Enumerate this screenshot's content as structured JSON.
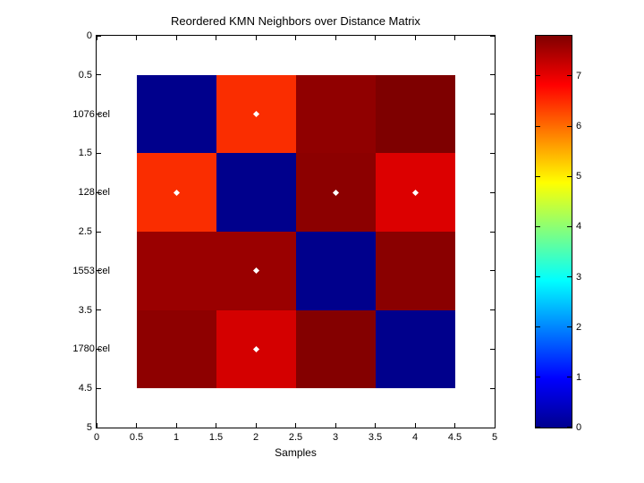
{
  "figure": {
    "background": "#FFFFFF"
  },
  "chart_data": {
    "type": "heatmap",
    "title": "Reordered KMN Neighbors over Distance Matrix",
    "xlabel": "Samples",
    "ylabel": "",
    "x_range": [
      0,
      5
    ],
    "y_range": [
      0,
      5
    ],
    "y_axis_direction": "reversed",
    "grid": false,
    "x_ticks": [
      {
        "v": 0,
        "label": "0"
      },
      {
        "v": 0.5,
        "label": "0.5"
      },
      {
        "v": 1,
        "label": "1"
      },
      {
        "v": 1.5,
        "label": "1.5"
      },
      {
        "v": 2,
        "label": "2"
      },
      {
        "v": 2.5,
        "label": "2.5"
      },
      {
        "v": 3,
        "label": "3"
      },
      {
        "v": 3.5,
        "label": "3.5"
      },
      {
        "v": 4,
        "label": "4"
      },
      {
        "v": 4.5,
        "label": "4.5"
      },
      {
        "v": 5,
        "label": "5"
      }
    ],
    "y_ticks": [
      {
        "v": 0,
        "label": "0",
        "file": false
      },
      {
        "v": 0.5,
        "label": "0.5",
        "file": false
      },
      {
        "v": 1,
        "label": "1076.cel",
        "file": true
      },
      {
        "v": 1.5,
        "label": "1.5",
        "file": false
      },
      {
        "v": 2,
        "label": "128.cel",
        "file": true
      },
      {
        "v": 2.5,
        "label": "2.5",
        "file": false
      },
      {
        "v": 3,
        "label": "1553.cel",
        "file": true
      },
      {
        "v": 3.5,
        "label": "3.5",
        "file": false
      },
      {
        "v": 4,
        "label": "1780.cel",
        "file": true
      },
      {
        "v": 4.5,
        "label": "4.5",
        "file": false
      },
      {
        "v": 5,
        "label": "5",
        "file": false
      }
    ],
    "sample_labels": [
      "1076.cel",
      "128.cel",
      "1553.cel",
      "1780.cel"
    ],
    "cells_origin": 0.5,
    "cell_size": 1,
    "matrix_values": [
      [
        0,
        6.5,
        7.6,
        7.8
      ],
      [
        6.5,
        0,
        7.65,
        7.1
      ],
      [
        7.55,
        7.55,
        0,
        7.66
      ],
      [
        7.62,
        7.15,
        7.7,
        0
      ]
    ],
    "matrix_colors": [
      [
        "#00008C",
        "#FA2D00",
        "#900000",
        "#7E0000"
      ],
      [
        "#FA2D00",
        "#00008C",
        "#8C0000",
        "#DC0000"
      ],
      [
        "#9A0000",
        "#9A0000",
        "#00008C",
        "#8A0000"
      ],
      [
        "#8E0000",
        "#D40000",
        "#840000",
        "#00008C"
      ]
    ],
    "markers": [
      {
        "x": 2,
        "y": 1
      },
      {
        "x": 1,
        "y": 2
      },
      {
        "x": 3,
        "y": 2
      },
      {
        "x": 4,
        "y": 2
      },
      {
        "x": 2,
        "y": 3
      },
      {
        "x": 2,
        "y": 4
      }
    ],
    "marker_style": "white-diamond",
    "colorbar": {
      "min": 0,
      "max": 7.8,
      "ticks": [
        {
          "v": 0,
          "label": "0"
        },
        {
          "v": 1,
          "label": "1"
        },
        {
          "v": 2,
          "label": "2"
        },
        {
          "v": 3,
          "label": "3"
        },
        {
          "v": 4,
          "label": "4"
        },
        {
          "v": 5,
          "label": "5"
        },
        {
          "v": 6,
          "label": "6"
        },
        {
          "v": 7,
          "label": "7"
        }
      ],
      "colormap": "jet",
      "gradient_stops": [
        {
          "pos": 0,
          "color": "#00008F"
        },
        {
          "pos": 0.125,
          "color": "#0000FF"
        },
        {
          "pos": 0.375,
          "color": "#00FFFF"
        },
        {
          "pos": 0.5,
          "color": "#80FF80"
        },
        {
          "pos": 0.625,
          "color": "#FFFF00"
        },
        {
          "pos": 0.875,
          "color": "#FF0000"
        },
        {
          "pos": 1,
          "color": "#800000"
        }
      ]
    }
  }
}
